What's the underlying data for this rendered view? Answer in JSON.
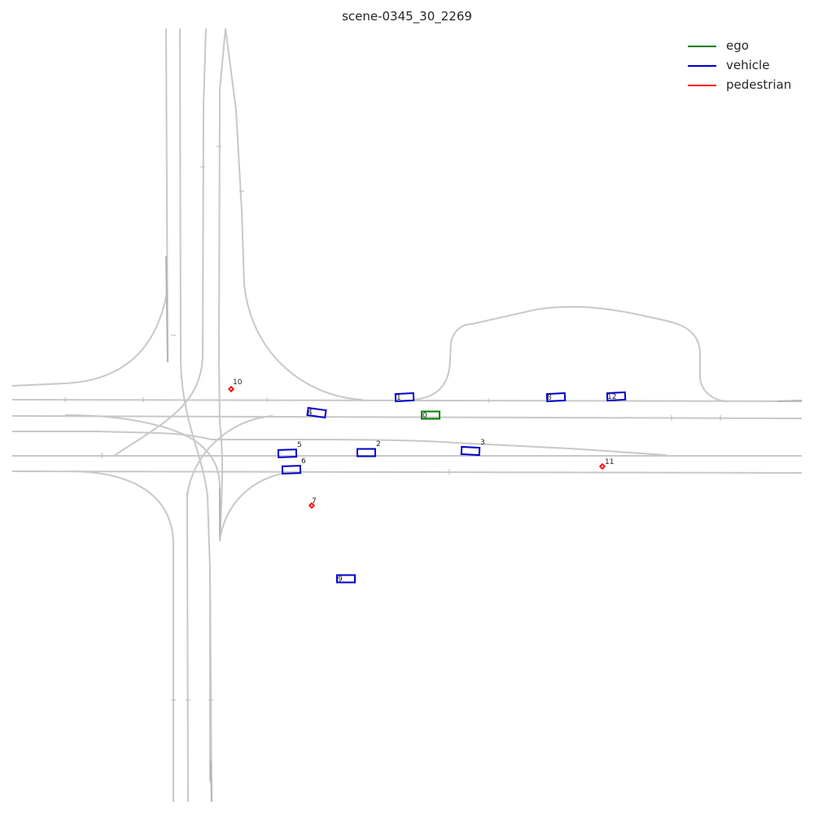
{
  "title": "scene-0345_30_2269",
  "legend": {
    "items": [
      {
        "label": "ego",
        "color": "#008000"
      },
      {
        "label": "vehicle",
        "color": "#0000cc"
      },
      {
        "label": "pedestrian",
        "color": "#ff0000"
      }
    ]
  },
  "colors": {
    "lane": "#c8c8c8",
    "ego": "#008000",
    "vehicle": "#0000cc",
    "pedestrian": "#ff0000"
  },
  "agents": [
    {
      "id": "0",
      "type": "ego"
    },
    {
      "id": "1",
      "type": "vehicle"
    },
    {
      "id": "2",
      "type": "vehicle"
    },
    {
      "id": "3",
      "type": "vehicle"
    },
    {
      "id": "4",
      "type": "vehicle"
    },
    {
      "id": "5",
      "type": "vehicle"
    },
    {
      "id": "6",
      "type": "vehicle"
    },
    {
      "id": "7",
      "type": "pedestrian"
    },
    {
      "id": "8",
      "type": "vehicle"
    },
    {
      "id": "9",
      "type": "vehicle"
    },
    {
      "id": "10",
      "type": "pedestrian"
    },
    {
      "id": "11",
      "type": "pedestrian"
    },
    {
      "id": "12",
      "type": "vehicle"
    }
  ]
}
